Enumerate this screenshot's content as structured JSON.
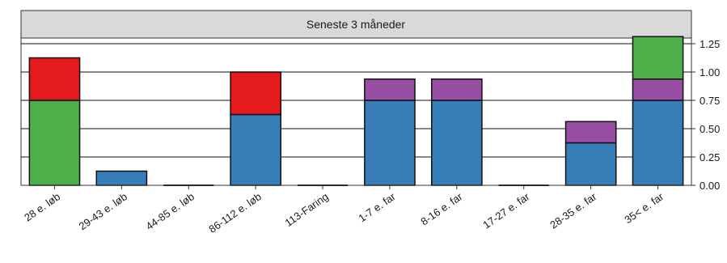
{
  "chart_data": {
    "type": "bar",
    "stacked": true,
    "panel_title": "Seneste 3 måneder",
    "categories": [
      "28 e. løb",
      "29-43 e. løb",
      "44-85 e. løb",
      "86-112 e. løb",
      "113-Faring",
      "1-7 e. far",
      "8-16 e. far",
      "17-27 e. far",
      "28-35 e. far",
      "35< e. far"
    ],
    "segments": [
      [
        {
          "value": 0.75,
          "color": "#4daf4a"
        },
        {
          "value": 0.375,
          "color": "#e41a1c"
        }
      ],
      [
        {
          "value": 0.125,
          "color": "#377eb8"
        }
      ],
      [],
      [
        {
          "value": 0.625,
          "color": "#377eb8"
        },
        {
          "value": 0.375,
          "color": "#e41a1c"
        }
      ],
      [],
      [
        {
          "value": 0.75,
          "color": "#377eb8"
        },
        {
          "value": 0.1875,
          "color": "#984ea3"
        }
      ],
      [
        {
          "value": 0.75,
          "color": "#377eb8"
        },
        {
          "value": 0.1875,
          "color": "#984ea3"
        }
      ],
      [],
      [
        {
          "value": 0.375,
          "color": "#377eb8"
        },
        {
          "value": 0.1875,
          "color": "#984ea3"
        }
      ],
      [
        {
          "value": 0.75,
          "color": "#377eb8"
        },
        {
          "value": 0.1875,
          "color": "#984ea3"
        },
        {
          "value": 0.375,
          "color": "#4daf4a"
        }
      ]
    ],
    "yticks": [
      "0.00",
      "0.25",
      "0.50",
      "0.75",
      "1.00",
      "1.25"
    ],
    "ytick_values": [
      0,
      0.25,
      0.5,
      0.75,
      1.0,
      1.25
    ],
    "ylim": [
      0,
      1.3
    ],
    "grid": true,
    "y_axis_side": "right"
  }
}
